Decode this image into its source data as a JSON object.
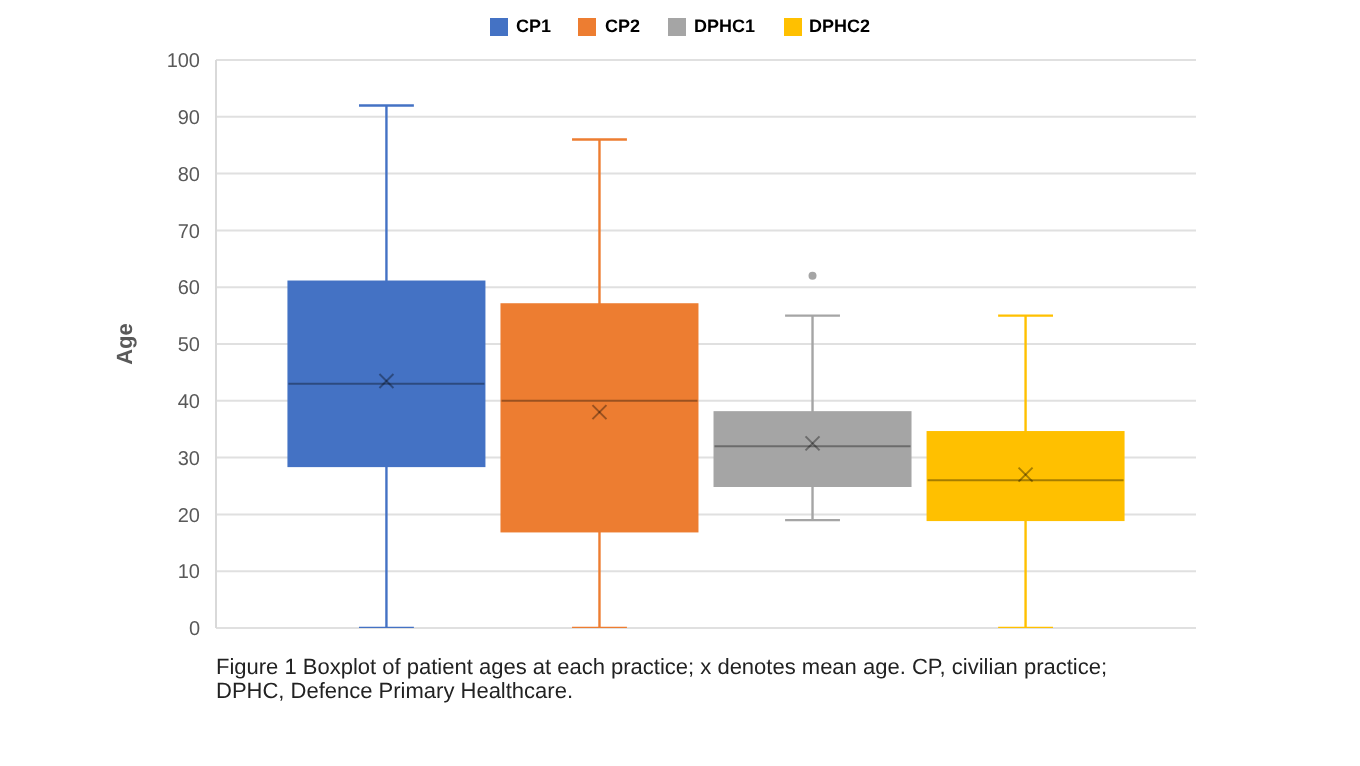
{
  "chart_data": {
    "type": "box",
    "ylabel": "Age",
    "categories": [
      null
    ],
    "ylim": [
      0,
      100
    ],
    "yticks": [
      0,
      10,
      20,
      30,
      40,
      50,
      60,
      70,
      80,
      90,
      100
    ],
    "grid": "y",
    "legend": "top",
    "annotations": [
      "Figure 1 Boxplot of patient ages at each practice; x denotes mean age. CP, civilian practice; DPHC, Defence Primary Healthcare."
    ],
    "series": [
      {
        "name": "CP1",
        "color": "#4472c4",
        "boxes": [
          {
            "low": 0,
            "q1": 28.5,
            "median": 43,
            "q3": 61,
            "high": 92,
            "mean": 43.5
          }
        ]
      },
      {
        "name": "CP2",
        "color": "#ed7d31",
        "boxes": [
          {
            "low": 0,
            "q1": 17,
            "median": 40,
            "q3": 57,
            "high": 86,
            "mean": 38
          }
        ]
      },
      {
        "name": "DPHC1",
        "color": "#a5a5a5",
        "boxes": [
          {
            "low": 19,
            "q1": 25,
            "median": 32,
            "q3": 38,
            "high": 55,
            "mean": 32.5,
            "outliers": [
              62
            ]
          }
        ]
      },
      {
        "name": "DPHC2",
        "color": "#ffc000",
        "boxes": [
          {
            "low": 0,
            "q1": 19,
            "median": 26,
            "q3": 34.5,
            "high": 55,
            "mean": 27
          }
        ]
      }
    ]
  }
}
